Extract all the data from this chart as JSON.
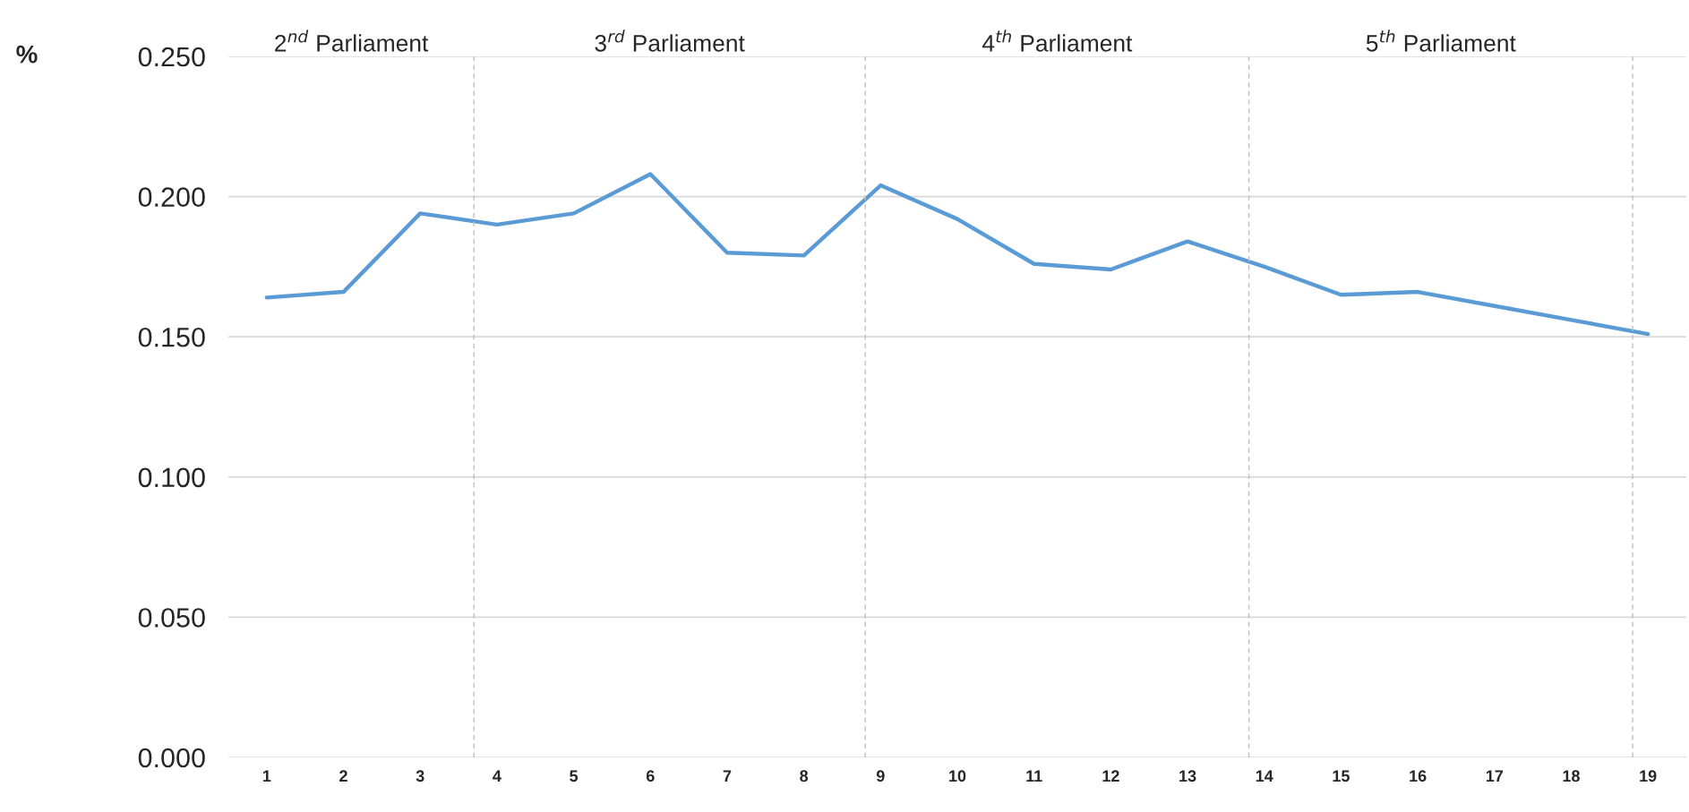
{
  "chart_data": {
    "type": "line",
    "ylabel": "%",
    "x": [
      1,
      2,
      3,
      4,
      5,
      6,
      7,
      8,
      9,
      10,
      11,
      12,
      13,
      14,
      15,
      16,
      17,
      18,
      19
    ],
    "series": [
      {
        "color": "#5b9bd5",
        "values": [
          0.164,
          0.166,
          0.194,
          0.19,
          0.194,
          0.208,
          0.18,
          0.179,
          0.204,
          0.192,
          0.176,
          0.174,
          0.184,
          0.175,
          0.165,
          0.166,
          0.161,
          0.156,
          0.151
        ]
      }
    ],
    "xlim": [
      0.5,
      19.5
    ],
    "xticks": [
      1,
      2,
      3,
      4,
      5,
      6,
      7,
      8,
      9,
      10,
      11,
      12,
      13,
      14,
      15,
      16,
      17,
      18,
      19
    ],
    "ylim": [
      0,
      0.25
    ],
    "yticks": [
      {
        "value": 0,
        "label": "0.000"
      },
      {
        "value": 0.05,
        "label": "0.050"
      },
      {
        "value": 0.1,
        "label": "0.100"
      },
      {
        "value": 0.15,
        "label": "0.150"
      },
      {
        "value": 0.2,
        "label": "0.200"
      },
      {
        "value": 0.25,
        "label": "0.250"
      }
    ],
    "grid": "y",
    "marker": "none",
    "line_style": "solid",
    "ref_lines": [
      {
        "axis": "x",
        "value": 3.7,
        "color": "#bfbfbf",
        "line_style": "dashed"
      },
      {
        "axis": "x",
        "value": 8.8,
        "color": "#bfbfbf",
        "line_style": "dashed"
      },
      {
        "axis": "x",
        "value": 13.8,
        "color": "#bfbfbf",
        "line_style": "dashed"
      },
      {
        "axis": "x",
        "value": 18.8,
        "color": "#bfbfbf",
        "line_style": "dashed"
      }
    ],
    "annotations": [
      "2$^{nd}$ Parliament",
      "3$^{rd}$ Parliament",
      "4$^{th}$ Parliament",
      "5$^{th}$ Parliament"
    ]
  }
}
